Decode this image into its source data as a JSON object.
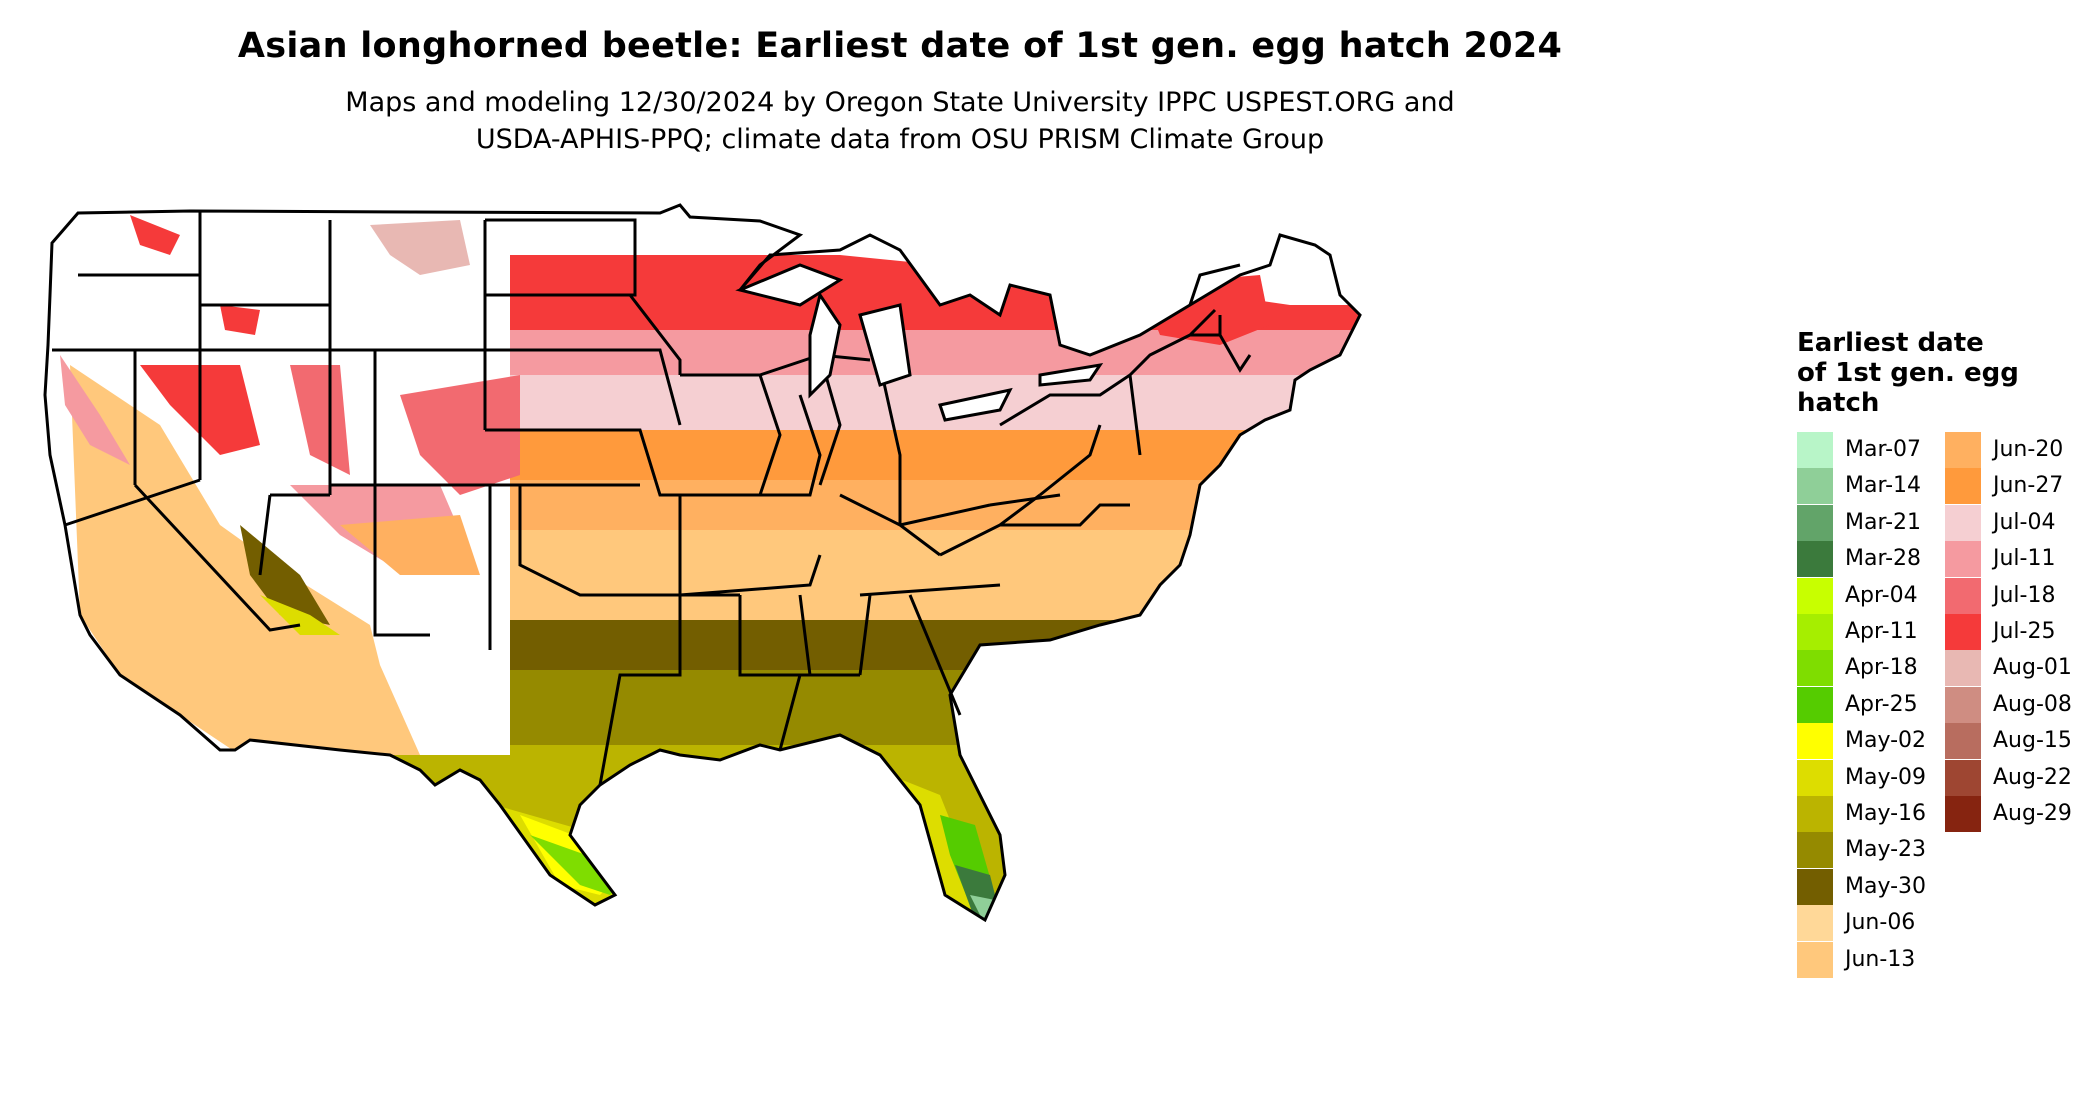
{
  "title": "Asian longhorned beetle: Earliest date of 1st gen. egg hatch 2024",
  "subtitle_line1": "Maps and modeling 12/30/2024 by Oregon State University IPPC USPEST.ORG and",
  "subtitle_line2": "USDA-APHIS-PPQ; climate data from OSU PRISM Climate Group",
  "legend": {
    "title_line1": "Earliest date",
    "title_line2": "of 1st gen. egg",
    "title_line3": "hatch",
    "items": [
      {
        "label": "Mar-07",
        "color": "#b8f5c8"
      },
      {
        "label": "Mar-14",
        "color": "#8fcf98"
      },
      {
        "label": "Mar-21",
        "color": "#62a469"
      },
      {
        "label": "Mar-28",
        "color": "#3b7a3c"
      },
      {
        "label": "Apr-04",
        "color": "#c8ff00"
      },
      {
        "label": "Apr-11",
        "color": "#a6ee00"
      },
      {
        "label": "Apr-18",
        "color": "#7fdd00"
      },
      {
        "label": "Apr-25",
        "color": "#55cc00"
      },
      {
        "label": "May-02",
        "color": "#ffff00"
      },
      {
        "label": "May-09",
        "color": "#dddd00"
      },
      {
        "label": "May-16",
        "color": "#bbb400"
      },
      {
        "label": "May-23",
        "color": "#958a00"
      },
      {
        "label": "May-30",
        "color": "#735e00"
      },
      {
        "label": "Jun-06",
        "color": "#ffd898"
      },
      {
        "label": "Jun-13",
        "color": "#ffc87c"
      },
      {
        "label": "Jun-20",
        "color": "#ffb060"
      },
      {
        "label": "Jun-27",
        "color": "#ff9a3c"
      },
      {
        "label": "Jul-04",
        "color": "#f5cfd2"
      },
      {
        "label": "Jul-11",
        "color": "#f59aa0"
      },
      {
        "label": "Jul-18",
        "color": "#f26a70"
      },
      {
        "label": "Jul-25",
        "color": "#f53a3a"
      },
      {
        "label": "Aug-01",
        "color": "#e8b8b3"
      },
      {
        "label": "Aug-08",
        "color": "#cf8d82"
      },
      {
        "label": "Aug-15",
        "color": "#b86d5f"
      },
      {
        "label": "Aug-22",
        "color": "#9e4632"
      },
      {
        "label": "Aug-29",
        "color": "#862410"
      }
    ]
  }
}
